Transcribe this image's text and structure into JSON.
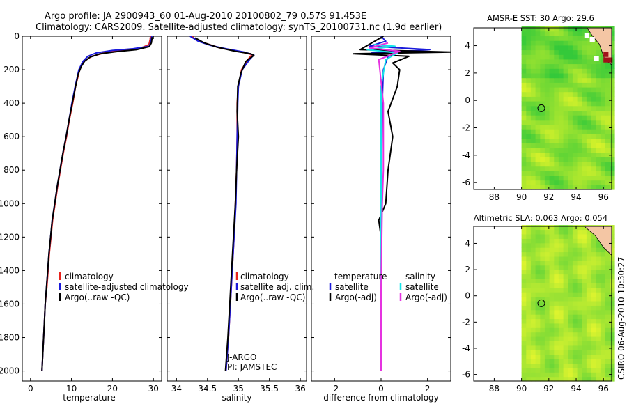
{
  "figure": {
    "title_line1": "Argo profile: JA 2900943_60 01-Aug-2010 20100802_79 0.57S 91.453E",
    "title_line2": "Climatology: CARS2009. Satellite-adjusted climatology: synTS_20100731.nc (1.9d earlier)",
    "side_label": "CSIRO 06-Aug-2010 10:30:27"
  },
  "colors": {
    "red": "#e8231d",
    "blue": "#1a1adb",
    "black": "#000000",
    "cyan": "#15e4e9",
    "magenta": "#e533e0",
    "land": "#f4c6a4",
    "frame": "#000000"
  },
  "chart_data": [
    {
      "id": "temperature",
      "type": "line",
      "xlabel": "temperature",
      "ylabel": "",
      "xlim": [
        -2,
        32
      ],
      "ylim": [
        2060,
        0
      ],
      "xticks": [
        0,
        10,
        20,
        30
      ],
      "yticks": [
        0,
        200,
        400,
        600,
        800,
        1000,
        1200,
        1400,
        1600,
        1800,
        2000
      ],
      "legend": [
        "climatology",
        "satellite-adjusted climatology",
        "Argo(..raw -QC)"
      ],
      "series": [
        {
          "name": "climatology",
          "color": "red",
          "points": [
            [
              29.3,
              0
            ],
            [
              29.2,
              20
            ],
            [
              28.9,
              50
            ],
            [
              27,
              70
            ],
            [
              22,
              85
            ],
            [
              18,
              100
            ],
            [
              15,
              120
            ],
            [
              13,
              150
            ],
            [
              12,
              200
            ],
            [
              11,
              300
            ],
            [
              10.3,
              400
            ],
            [
              9.5,
              500
            ],
            [
              8.8,
              600
            ],
            [
              8,
              700
            ],
            [
              7.3,
              800
            ],
            [
              6.6,
              900
            ],
            [
              6,
              1000
            ],
            [
              5.4,
              1100
            ],
            [
              5,
              1200
            ],
            [
              4.6,
              1300
            ],
            [
              4.3,
              1400
            ],
            [
              4,
              1500
            ],
            [
              3.6,
              1600
            ],
            [
              3.4,
              1700
            ],
            [
              3.2,
              1800
            ],
            [
              3,
              1900
            ],
            [
              2.8,
              2000
            ]
          ]
        },
        {
          "name": "satellite-adjusted climatology",
          "color": "blue",
          "points": [
            [
              29.6,
              0
            ],
            [
              29.4,
              30
            ],
            [
              29,
              60
            ],
            [
              25,
              75
            ],
            [
              20,
              85
            ],
            [
              16,
              100
            ],
            [
              14,
              120
            ],
            [
              12.8,
              150
            ],
            [
              11.8,
              200
            ],
            [
              10.9,
              300
            ],
            [
              10.1,
              400
            ],
            [
              9.4,
              500
            ],
            [
              8.7,
              600
            ],
            [
              7.9,
              700
            ],
            [
              7.2,
              800
            ],
            [
              6.5,
              900
            ],
            [
              5.9,
              1000
            ],
            [
              5.3,
              1100
            ],
            [
              4.9,
              1200
            ],
            [
              4.5,
              1300
            ],
            [
              4.2,
              1400
            ],
            [
              3.9,
              1500
            ],
            [
              3.6,
              1600
            ],
            [
              3.4,
              1700
            ],
            [
              3.2,
              1800
            ],
            [
              3,
              1900
            ],
            [
              2.8,
              2000
            ]
          ]
        },
        {
          "name": "Argo(..raw -QC)",
          "color": "black",
          "points": [
            [
              29.7,
              5
            ],
            [
              29.5,
              40
            ],
            [
              29,
              62
            ],
            [
              26,
              80
            ],
            [
              21,
              92
            ],
            [
              17,
              105
            ],
            [
              14.5,
              125
            ],
            [
              13.2,
              150
            ],
            [
              12.4,
              180
            ],
            [
              11.6,
              230
            ],
            [
              11,
              300
            ],
            [
              10.2,
              400
            ],
            [
              9.4,
              500
            ],
            [
              8.7,
              600
            ],
            [
              7.9,
              700
            ],
            [
              7.2,
              800
            ],
            [
              6.5,
              900
            ],
            [
              5.9,
              1000
            ],
            [
              5.3,
              1100
            ],
            [
              4.9,
              1200
            ],
            [
              4.5,
              1300
            ],
            [
              4.2,
              1400
            ],
            [
              3.9,
              1500
            ],
            [
              3.6,
              1600
            ],
            [
              3.4,
              1700
            ],
            [
              3.2,
              1800
            ],
            [
              3,
              1900
            ],
            [
              2.8,
              2000
            ]
          ]
        }
      ]
    },
    {
      "id": "salinity",
      "type": "line",
      "xlabel": "salinity",
      "xlim": [
        33.85,
        36.1
      ],
      "ylim": [
        2060,
        0
      ],
      "xticks": [
        34,
        34.5,
        35,
        35.5,
        36
      ],
      "xticklabels": [
        "34",
        "34.5",
        "35",
        "35.5",
        "36"
      ],
      "legend": [
        "climatology",
        "satellite adj. clim.",
        "Argo(..raw -QC)"
      ],
      "annotations": [
        "J-ARGO",
        "PI: JAMSTEC"
      ],
      "series": [
        {
          "name": "climatology",
          "color": "red",
          "points": [
            [
              34.25,
              0
            ],
            [
              34.3,
              20
            ],
            [
              34.45,
              40
            ],
            [
              34.7,
              70
            ],
            [
              35.0,
              90
            ],
            [
              35.22,
              110
            ],
            [
              35.15,
              140
            ],
            [
              35.05,
              200
            ],
            [
              35.0,
              300
            ],
            [
              34.98,
              400
            ],
            [
              34.98,
              600
            ],
            [
              34.97,
              800
            ],
            [
              34.95,
              1000
            ],
            [
              34.93,
              1200
            ],
            [
              34.9,
              1400
            ],
            [
              34.87,
              1600
            ],
            [
              34.84,
              1800
            ],
            [
              34.8,
              2000
            ]
          ]
        },
        {
          "name": "satellite adj. clim.",
          "color": "blue",
          "points": [
            [
              34.22,
              0
            ],
            [
              34.35,
              30
            ],
            [
              34.55,
              55
            ],
            [
              34.8,
              75
            ],
            [
              35.1,
              95
            ],
            [
              35.25,
              112
            ],
            [
              35.18,
              140
            ],
            [
              35.06,
              200
            ],
            [
              35.0,
              300
            ],
            [
              34.99,
              400
            ],
            [
              34.98,
              600
            ],
            [
              34.97,
              800
            ],
            [
              34.96,
              1000
            ],
            [
              34.93,
              1200
            ],
            [
              34.9,
              1400
            ],
            [
              34.87,
              1600
            ],
            [
              34.84,
              1800
            ],
            [
              34.8,
              2000
            ]
          ]
        },
        {
          "name": "Argo(..raw -QC)",
          "color": "black",
          "points": [
            [
              34.3,
              10
            ],
            [
              34.45,
              40
            ],
            [
              34.65,
              65
            ],
            [
              34.95,
              90
            ],
            [
              35.2,
              105
            ],
            [
              35.25,
              115
            ],
            [
              35.12,
              150
            ],
            [
              35.04,
              220
            ],
            [
              34.99,
              300
            ],
            [
              34.98,
              450
            ],
            [
              35.0,
              600
            ],
            [
              34.97,
              800
            ],
            [
              34.95,
              1000
            ],
            [
              34.92,
              1200
            ],
            [
              34.89,
              1400
            ],
            [
              34.86,
              1600
            ],
            [
              34.83,
              1800
            ],
            [
              34.79,
              2000
            ]
          ]
        }
      ]
    },
    {
      "id": "difference",
      "type": "line",
      "xlabel": "difference from climatology",
      "xlim": [
        -3,
        3
      ],
      "ylim": [
        2060,
        0
      ],
      "xticks": [
        -2,
        0,
        2
      ],
      "legend_temperature_header": "temperature",
      "legend_salinity_header": "salinity",
      "legend_temperature": [
        "satellite",
        "Argo(-adj)"
      ],
      "legend_salinity": [
        "satellite",
        "Argo(-adj)"
      ],
      "series": [
        {
          "name": "temperature satellite",
          "color": "blue",
          "points": [
            [
              0,
              0
            ],
            [
              0.2,
              30
            ],
            [
              -0.5,
              60
            ],
            [
              2.1,
              80
            ],
            [
              -0.4,
              100
            ],
            [
              0.3,
              120
            ],
            [
              0.1,
              200
            ],
            [
              0.05,
              400
            ],
            [
              0.02,
              800
            ],
            [
              0,
              1200
            ],
            [
              0,
              1600
            ],
            [
              0,
              2000
            ]
          ]
        },
        {
          "name": "temperature Argo(-adj)",
          "color": "black",
          "points": [
            [
              0.1,
              0
            ],
            [
              -0.9,
              80
            ],
            [
              3,
              95
            ],
            [
              -1.2,
              105
            ],
            [
              1.2,
              120
            ],
            [
              0.5,
              160
            ],
            [
              0.8,
              200
            ],
            [
              0.7,
              300
            ],
            [
              0.3,
              450
            ],
            [
              0.5,
              600
            ],
            [
              0.3,
              800
            ],
            [
              0.2,
              1000
            ],
            [
              -0.1,
              1100
            ],
            [
              0,
              1200
            ],
            [
              0,
              1600
            ],
            [
              0,
              2000
            ]
          ]
        },
        {
          "name": "salinity satellite",
          "color": "cyan",
          "points": [
            [
              -0.3,
              50
            ],
            [
              0.6,
              60
            ],
            [
              -0.6,
              80
            ],
            [
              0.7,
              100
            ],
            [
              0.2,
              140
            ],
            [
              0,
              300
            ],
            [
              0,
              1000
            ],
            [
              0,
              1500
            ],
            [
              0,
              2000
            ]
          ]
        },
        {
          "name": "salinity Argo(-adj)",
          "color": "magenta",
          "points": [
            [
              0.3,
              40
            ],
            [
              -0.5,
              70
            ],
            [
              0.8,
              90
            ],
            [
              -0.1,
              140
            ],
            [
              0.1,
              400
            ],
            [
              0.1,
              800
            ],
            [
              0.05,
              1000
            ],
            [
              0,
              1500
            ],
            [
              0,
              2000
            ]
          ]
        }
      ]
    },
    {
      "id": "sst-map",
      "type": "heatmap",
      "title": "AMSR-E SST: 30 Argo: 29.6",
      "xlim": [
        86.5,
        96.6
      ],
      "ylim": [
        -6.5,
        5.3
      ],
      "xticks": [
        88,
        90,
        92,
        94,
        96
      ],
      "yticks": [
        -6,
        -4,
        -2,
        0,
        2,
        4
      ],
      "argo_position": {
        "lon": 91.45,
        "lat": -0.57
      },
      "missing_west_of_lon": 90
    },
    {
      "id": "sla-map",
      "type": "heatmap",
      "title": "Altimetric SLA: 0.063 Argo: 0.054",
      "xlim": [
        86.5,
        96.6
      ],
      "ylim": [
        -6.5,
        5.3
      ],
      "xticks": [
        88,
        90,
        92,
        94,
        96
      ],
      "yticks": [
        -6,
        -4,
        -2,
        0,
        2,
        4
      ],
      "argo_position": {
        "lon": 91.45,
        "lat": -0.57
      },
      "missing_west_of_lon": 90
    }
  ]
}
